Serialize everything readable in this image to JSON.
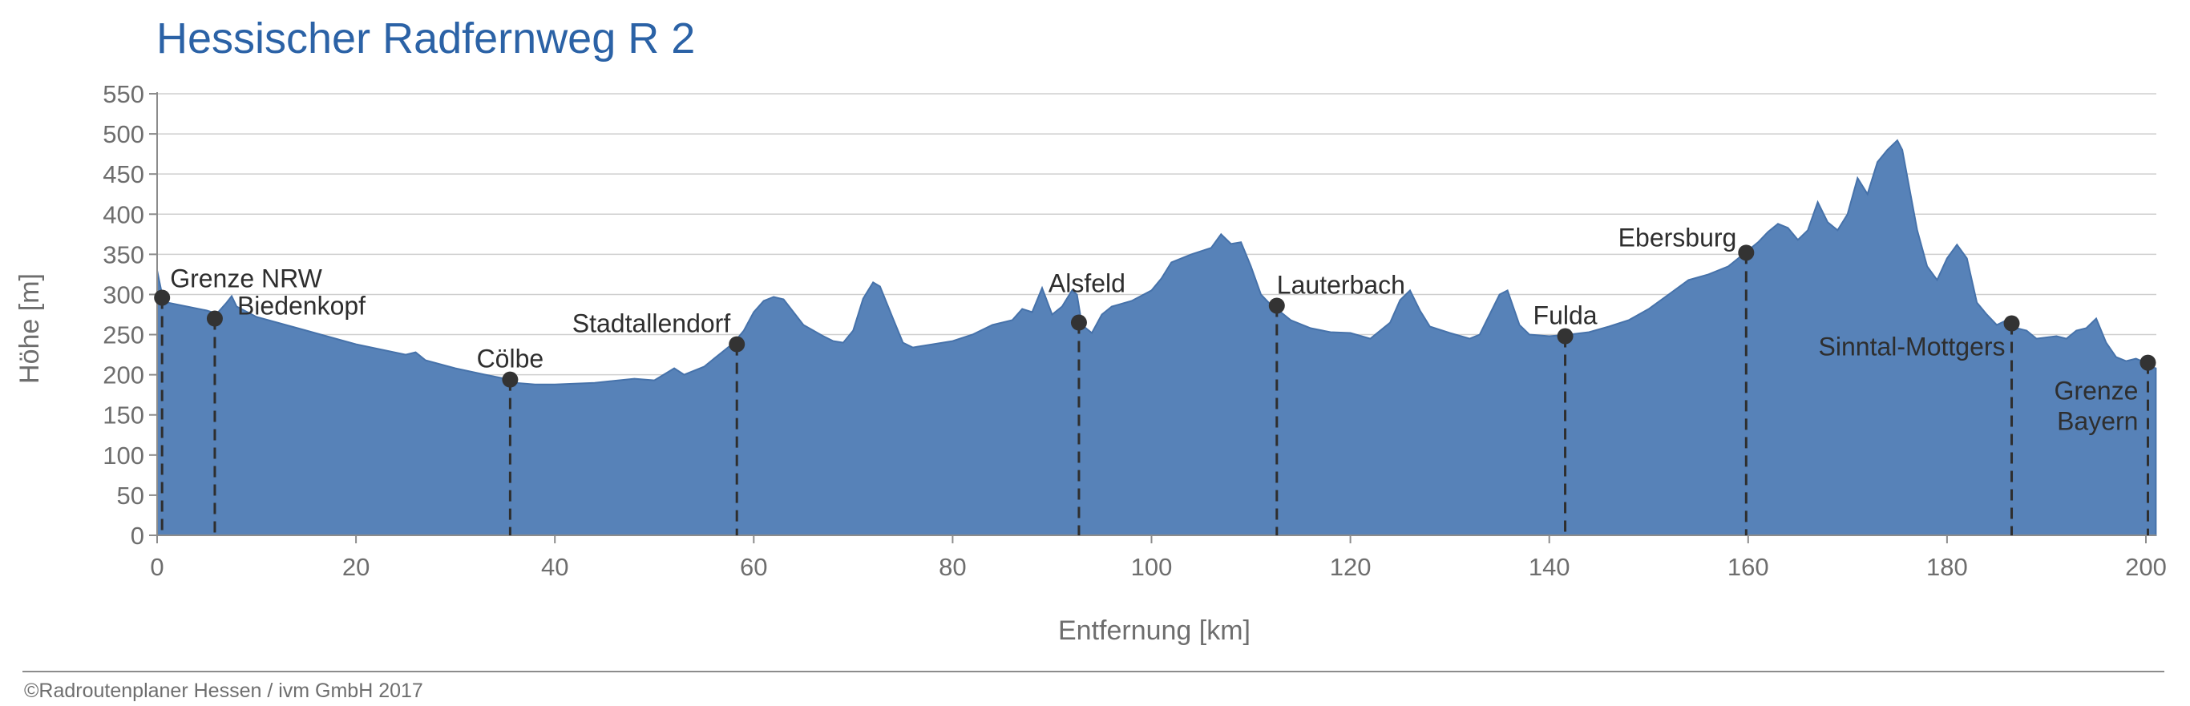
{
  "chart_data": {
    "type": "area",
    "title": "Hessischer Radfernweg R 2",
    "xlabel": "Entfernung [km]",
    "ylabel": "Höhe [m]",
    "xlim": [
      0,
      201
    ],
    "ylim": [
      0,
      550
    ],
    "x_ticks": [
      0,
      20,
      40,
      60,
      80,
      100,
      120,
      140,
      160,
      180,
      200
    ],
    "y_ticks": [
      0,
      50,
      100,
      150,
      200,
      250,
      300,
      350,
      400,
      450,
      500,
      550
    ],
    "grid": true,
    "color": "#5782b8",
    "profile": [
      [
        0,
        330
      ],
      [
        0.5,
        300
      ],
      [
        1,
        290
      ],
      [
        3,
        285
      ],
      [
        5,
        280
      ],
      [
        6,
        276
      ],
      [
        7,
        290
      ],
      [
        7.5,
        298
      ],
      [
        8,
        285
      ],
      [
        10,
        272
      ],
      [
        15,
        255
      ],
      [
        20,
        238
      ],
      [
        25,
        225
      ],
      [
        26,
        228
      ],
      [
        27,
        218
      ],
      [
        30,
        208
      ],
      [
        33,
        200
      ],
      [
        35,
        195
      ],
      [
        36,
        190
      ],
      [
        38,
        188
      ],
      [
        40,
        188
      ],
      [
        44,
        190
      ],
      [
        48,
        195
      ],
      [
        50,
        193
      ],
      [
        52,
        208
      ],
      [
        53,
        200
      ],
      [
        55,
        210
      ],
      [
        57,
        230
      ],
      [
        58,
        240
      ],
      [
        59,
        255
      ],
      [
        60,
        278
      ],
      [
        61,
        292
      ],
      [
        62,
        297
      ],
      [
        63,
        294
      ],
      [
        65,
        262
      ],
      [
        67,
        248
      ],
      [
        68,
        242
      ],
      [
        69,
        240
      ],
      [
        70,
        255
      ],
      [
        71,
        295
      ],
      [
        72,
        315
      ],
      [
        72.7,
        310
      ],
      [
        74,
        270
      ],
      [
        75,
        240
      ],
      [
        76,
        234
      ],
      [
        78,
        238
      ],
      [
        80,
        242
      ],
      [
        82,
        250
      ],
      [
        84,
        262
      ],
      [
        86,
        268
      ],
      [
        87,
        282
      ],
      [
        88,
        278
      ],
      [
        89,
        308
      ],
      [
        90,
        275
      ],
      [
        91,
        285
      ],
      [
        92,
        305
      ],
      [
        92.5,
        300
      ],
      [
        93,
        262
      ],
      [
        94,
        252
      ],
      [
        95,
        275
      ],
      [
        96,
        285
      ],
      [
        98,
        292
      ],
      [
        100,
        305
      ],
      [
        101,
        320
      ],
      [
        102,
        340
      ],
      [
        104,
        350
      ],
      [
        106,
        358
      ],
      [
        107,
        375
      ],
      [
        108,
        363
      ],
      [
        109,
        365
      ],
      [
        110,
        335
      ],
      [
        111,
        300
      ],
      [
        112,
        287
      ],
      [
        113,
        278
      ],
      [
        114,
        268
      ],
      [
        116,
        258
      ],
      [
        118,
        253
      ],
      [
        120,
        252
      ],
      [
        122,
        245
      ],
      [
        124,
        265
      ],
      [
        125,
        293
      ],
      [
        126,
        305
      ],
      [
        127,
        280
      ],
      [
        128,
        260
      ],
      [
        130,
        252
      ],
      [
        132,
        245
      ],
      [
        133,
        250
      ],
      [
        134,
        275
      ],
      [
        135,
        300
      ],
      [
        135.8,
        305
      ],
      [
        137,
        262
      ],
      [
        138,
        250
      ],
      [
        140,
        248
      ],
      [
        142,
        250
      ],
      [
        144,
        253
      ],
      [
        146,
        260
      ],
      [
        148,
        268
      ],
      [
        150,
        282
      ],
      [
        152,
        300
      ],
      [
        154,
        318
      ],
      [
        156,
        325
      ],
      [
        158,
        335
      ],
      [
        159,
        345
      ],
      [
        160,
        355
      ],
      [
        161,
        365
      ],
      [
        162,
        378
      ],
      [
        163,
        388
      ],
      [
        164,
        383
      ],
      [
        165,
        368
      ],
      [
        166,
        380
      ],
      [
        167,
        415
      ],
      [
        168,
        390
      ],
      [
        169,
        380
      ],
      [
        170,
        400
      ],
      [
        171,
        445
      ],
      [
        172,
        425
      ],
      [
        173,
        465
      ],
      [
        174,
        480
      ],
      [
        175,
        492
      ],
      [
        175.5,
        480
      ],
      [
        177,
        380
      ],
      [
        178,
        335
      ],
      [
        179,
        318
      ],
      [
        180,
        345
      ],
      [
        181,
        362
      ],
      [
        182,
        345
      ],
      [
        183,
        290
      ],
      [
        184,
        275
      ],
      [
        185,
        262
      ],
      [
        186,
        268
      ],
      [
        187,
        258
      ],
      [
        188,
        255
      ],
      [
        189,
        245
      ],
      [
        191,
        248
      ],
      [
        192,
        245
      ],
      [
        193,
        255
      ],
      [
        194,
        258
      ],
      [
        195,
        270
      ],
      [
        196,
        240
      ],
      [
        197,
        222
      ],
      [
        198,
        217
      ],
      [
        199,
        220
      ],
      [
        200,
        215
      ],
      [
        200.5,
        210
      ],
      [
        201,
        208
      ]
    ],
    "places": [
      {
        "name": "Grenze NRW",
        "km": 0.5,
        "elev": 296
      },
      {
        "name": "Biedenkopf",
        "km": 5.8,
        "elev": 270
      },
      {
        "name": "Cölbe",
        "km": 35.5,
        "elev": 194
      },
      {
        "name": "Stadtallendorf",
        "km": 58.3,
        "elev": 238
      },
      {
        "name": "Alsfeld",
        "km": 92.7,
        "elev": 265
      },
      {
        "name": "Lauterbach",
        "km": 112.6,
        "elev": 286
      },
      {
        "name": "Fulda",
        "km": 141.6,
        "elev": 248
      },
      {
        "name": "Ebersburg",
        "km": 159.8,
        "elev": 352
      },
      {
        "name": "Sinntal-Mottgers",
        "km": 186.5,
        "elev": 264
      },
      {
        "name": "Grenze Bayern",
        "km": 200.2,
        "elev": 215
      }
    ]
  },
  "footer": {
    "copyright": "©Radroutenplaner Hessen / ivm GmbH 2017"
  }
}
